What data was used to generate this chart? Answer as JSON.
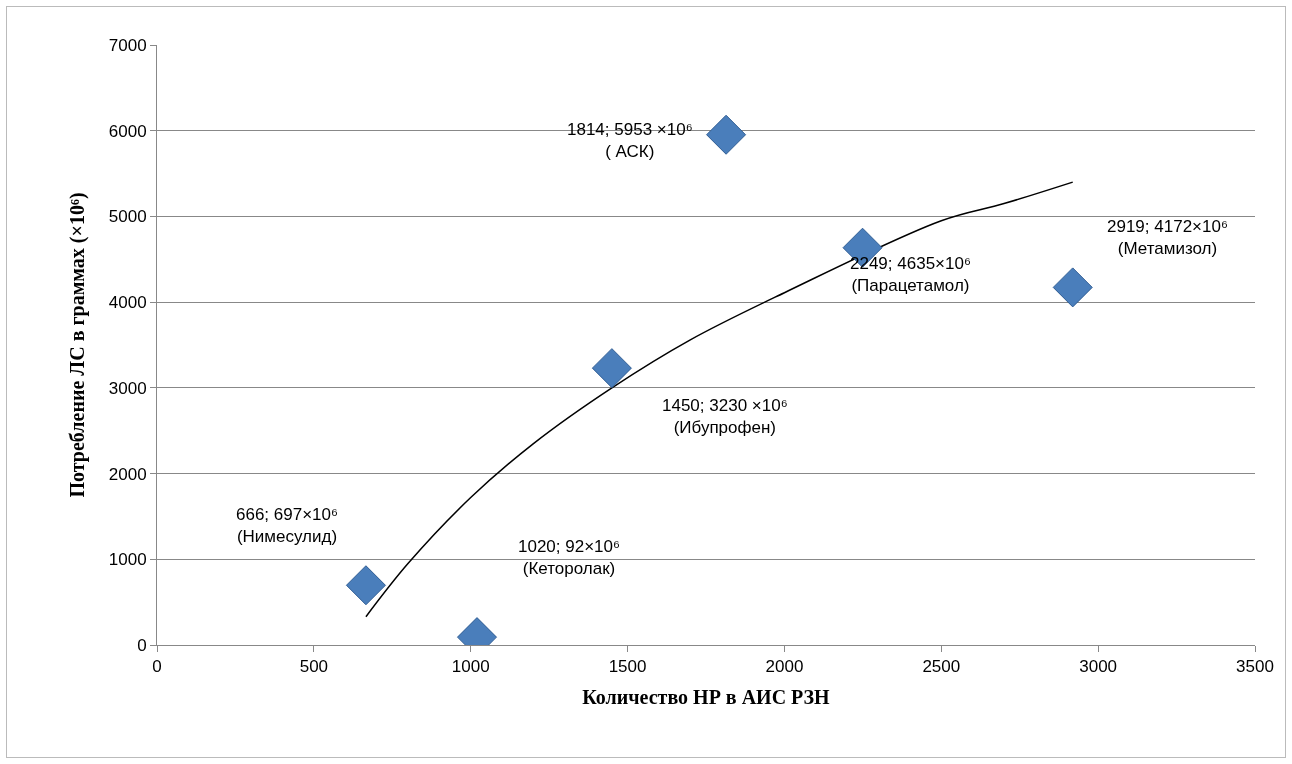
{
  "chart_data": {
    "type": "scatter",
    "xlabel": "Количество НР в АИС РЗН",
    "ylabel": "Потребление ЛС в граммах (×10⁶)",
    "xlim": [
      0,
      3500
    ],
    "xticks": [
      0,
      500,
      1000,
      1500,
      2000,
      2500,
      3000,
      3500
    ],
    "ylim": [
      0,
      7000
    ],
    "yticks": [
      0,
      1000,
      2000,
      3000,
      4000,
      5000,
      6000,
      7000
    ],
    "grid": "y",
    "marker": "diamond",
    "legend": false,
    "series": [
      {
        "color": "#4a7ebb",
        "x": [
          666,
          1020,
          1450,
          1814,
          2249,
          2919
        ],
        "values": [
          697,
          92,
          3230,
          5953,
          4635,
          4172
        ],
        "value_labels": [
          "666; 697×10⁶\n(Нимесулид)",
          "1020; 92×10⁶\n(Кеторолак)",
          "1450; 3230 ×10⁶\n(Ибупрофен)",
          "1814; 5953 ×10⁶\n( АСК)",
          "2249; 4635×10⁶\n(Парацетамол)",
          "2919; 4172×10⁶\n(Метамизол)"
        ]
      },
      {
        "type": "line",
        "color": "#000000",
        "line_style": "solid",
        "marker": "none",
        "x": [
          666,
          800,
          1000,
          1200,
          1450,
          1700,
          2000,
          2500,
          2700,
          2919
        ],
        "values": [
          330,
          950,
          1720,
          2350,
          3000,
          3560,
          4110,
          4950,
          5150,
          5400
        ]
      }
    ]
  }
}
